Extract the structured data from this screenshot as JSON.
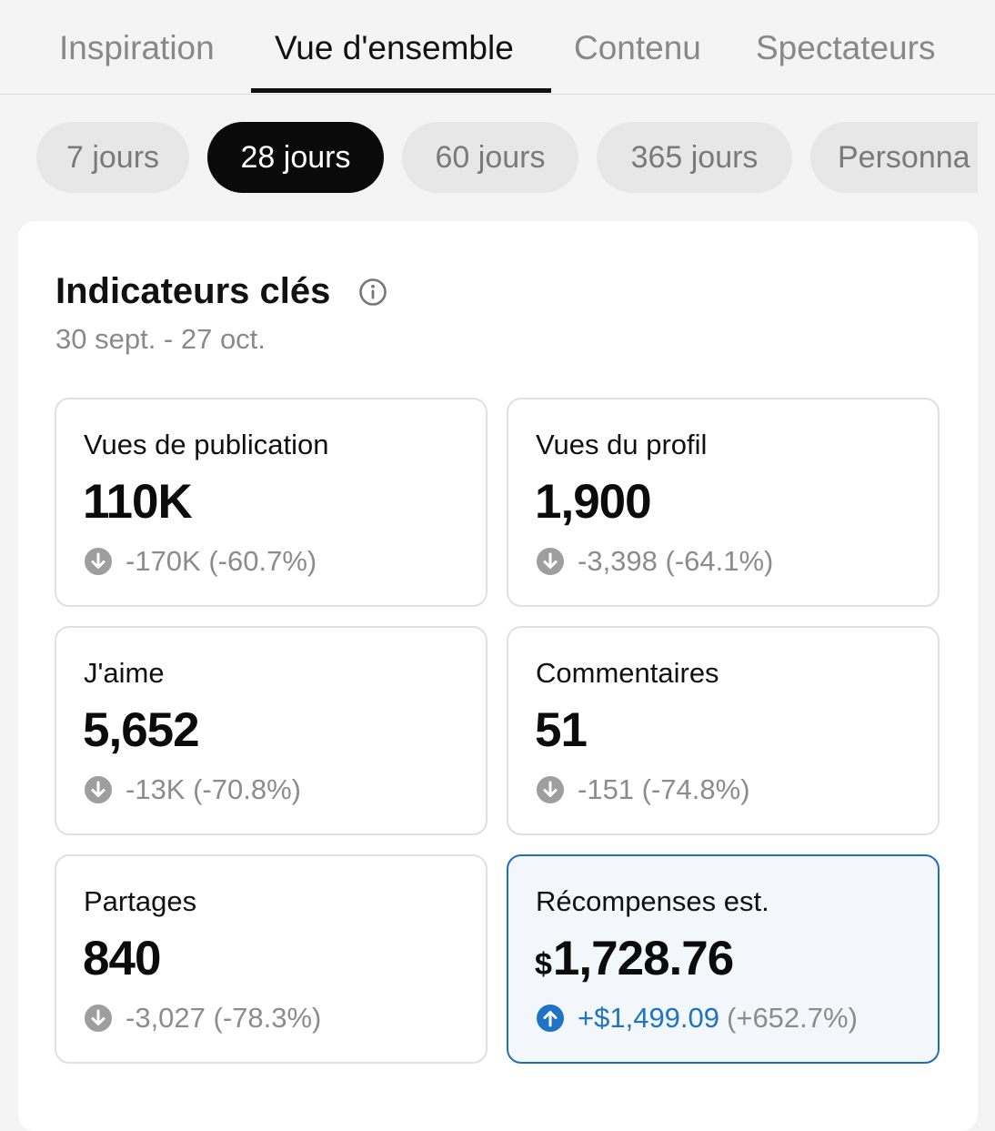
{
  "tabs": [
    {
      "label": "Inspiration",
      "active": false
    },
    {
      "label": "Vue d'ensemble",
      "active": true
    },
    {
      "label": "Contenu",
      "active": false
    },
    {
      "label": "Spectateurs",
      "active": false
    }
  ],
  "periods": [
    {
      "label": "7 jours",
      "active": false
    },
    {
      "label": "28 jours",
      "active": true
    },
    {
      "label": "60 jours",
      "active": false
    },
    {
      "label": "365 jours",
      "active": false
    },
    {
      "label": "Personna",
      "active": false
    }
  ],
  "key_metrics": {
    "title": "Indicateurs clés",
    "date_range": "30 sept. - 27 oct.",
    "info_icon": "info-icon",
    "metrics": [
      {
        "label": "Vues de publication",
        "value": "110K",
        "change": "-170K (-60.7%)",
        "direction": "down"
      },
      {
        "label": "Vues du profil",
        "value": "1,900",
        "change": "-3,398 (-64.1%)",
        "direction": "down"
      },
      {
        "label": "J'aime",
        "value": "5,652",
        "change": "-13K (-70.8%)",
        "direction": "down"
      },
      {
        "label": "Commentaires",
        "value": "51",
        "change": "-151 (-74.8%)",
        "direction": "down"
      },
      {
        "label": "Partages",
        "value": "840",
        "change": "-3,027 (-78.3%)",
        "direction": "down"
      },
      {
        "label": "Récompenses est.",
        "currency": "$",
        "value": "1,728.76",
        "change_amount": "+$1,499.09",
        "change_percent": "(+652.7%)",
        "direction": "up"
      }
    ]
  },
  "colors": {
    "background": "#f4f4f4",
    "active_chip": "#0a0a0a",
    "down_icon": "#9e9e9e",
    "up_icon": "#1f73c4",
    "highlight_border": "#1f6fb8"
  }
}
